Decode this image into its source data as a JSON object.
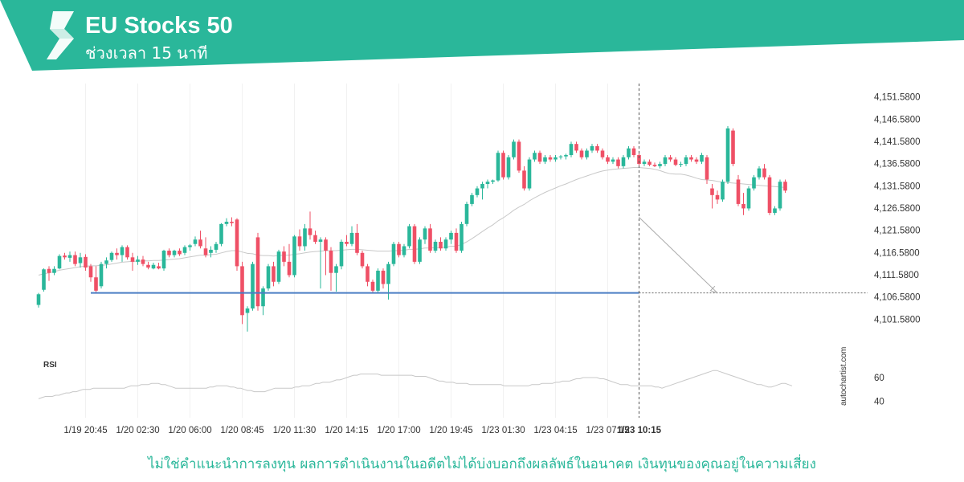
{
  "header": {
    "title": "EU Stocks 50",
    "subtitle": "ช่วงเวลา 15 นาที",
    "logo_icon": "autochartist-logo-icon"
  },
  "colors": {
    "brand": "#2ab79a",
    "bull": "#2ab79a",
    "bear": "#ef5066",
    "support_line": "#4a7dc4",
    "sma_line": "#c8c8c8",
    "rsi_line": "#c8c8c8"
  },
  "chart_data": {
    "type": "candlestick",
    "instrument": "EU Stocks 50",
    "timeframe": "15 นาที",
    "ylim": [
      4098.58,
      4154.58
    ],
    "y_ticks": [
      "4,151.5800",
      "4,146.5800",
      "4,141.5800",
      "4,136.5800",
      "4,131.5800",
      "4,126.5800",
      "4,121.5800",
      "4,116.5800",
      "4,111.5800",
      "4,106.5800",
      "4,101.5800"
    ],
    "y_tick_values": [
      4151.58,
      4146.58,
      4141.58,
      4136.58,
      4131.58,
      4126.58,
      4121.58,
      4116.58,
      4111.58,
      4106.58,
      4101.58
    ],
    "x_ticks": [
      {
        "label": "1/19 20:45",
        "index": 9
      },
      {
        "label": "1/20 02:30",
        "index": 19
      },
      {
        "label": "1/20 06:00",
        "index": 29
      },
      {
        "label": "1/20 08:45",
        "index": 39
      },
      {
        "label": "1/20 11:30",
        "index": 49
      },
      {
        "label": "1/20 14:15",
        "index": 59
      },
      {
        "label": "1/20 17:00",
        "index": 69
      },
      {
        "label": "1/20 19:45",
        "index": 79
      },
      {
        "label": "1/23 01:30",
        "index": 89
      },
      {
        "label": "1/23 04:15",
        "index": 99
      },
      {
        "label": "1/23 07:15",
        "index": 109
      },
      {
        "label": "1/23 10:15",
        "index": 115,
        "bold": true
      }
    ],
    "candles_ohlc": [
      [
        4104.8,
        4107.5,
        4104.2,
        4107.2
      ],
      [
        4108.2,
        4113.0,
        4107.8,
        4112.8
      ],
      [
        4112.9,
        4113.5,
        4110.2,
        4112.0
      ],
      [
        4112.0,
        4113.5,
        4111.5,
        4112.9
      ],
      [
        4113.0,
        4116.2,
        4112.8,
        4115.8
      ],
      [
        4115.9,
        4116.5,
        4115.0,
        4115.5
      ],
      [
        4115.4,
        4116.8,
        4114.5,
        4116.0
      ],
      [
        4116.0,
        4116.8,
        4113.5,
        4114.0
      ],
      [
        4114.2,
        4116.5,
        4113.2,
        4115.5
      ],
      [
        4115.6,
        4116.2,
        4112.5,
        4113.2
      ],
      [
        4113.5,
        4114.0,
        4110.0,
        4111.0
      ],
      [
        4111.0,
        4113.5,
        4107.5,
        4108.0
      ],
      [
        4109.0,
        4114.5,
        4108.5,
        4114.0
      ],
      [
        4114.0,
        4115.5,
        4113.0,
        4114.8
      ],
      [
        4114.9,
        4116.8,
        4114.5,
        4116.5
      ],
      [
        4116.5,
        4117.5,
        4115.0,
        4116.0
      ],
      [
        4116.0,
        4118.2,
        4114.5,
        4117.8
      ],
      [
        4117.8,
        4118.2,
        4115.0,
        4115.5
      ],
      [
        4115.5,
        4116.5,
        4112.5,
        4114.5
      ],
      [
        4114.5,
        4115.8,
        4113.8,
        4115.0
      ],
      [
        4115.0,
        4115.8,
        4113.5,
        4114.0
      ],
      [
        4113.8,
        4114.5,
        4112.8,
        4113.2
      ],
      [
        4113.0,
        4114.3,
        4112.8,
        4113.8
      ],
      [
        4113.5,
        4114.3,
        4112.8,
        4113.0
      ],
      [
        4113.0,
        4117.2,
        4112.5,
        4117.0
      ],
      [
        4117.0,
        4117.5,
        4115.5,
        4116.0
      ],
      [
        4116.0,
        4117.2,
        4115.5,
        4117.0
      ],
      [
        4117.0,
        4117.5,
        4115.8,
        4116.2
      ],
      [
        4116.5,
        4118.2,
        4116.0,
        4117.8
      ],
      [
        4117.8,
        4118.5,
        4117.0,
        4118.2
      ],
      [
        4118.5,
        4120.2,
        4118.0,
        4119.5
      ],
      [
        4119.5,
        4121.5,
        4117.5,
        4118.0
      ],
      [
        4117.5,
        4120.0,
        4115.5,
        4116.0
      ],
      [
        4116.5,
        4118.0,
        4115.5,
        4117.2
      ],
      [
        4117.2,
        4119.0,
        4116.5,
        4118.5
      ],
      [
        4118.5,
        4123.2,
        4118.0,
        4123.0
      ],
      [
        4123.0,
        4124.3,
        4122.5,
        4123.5
      ],
      [
        4123.5,
        4124.5,
        4122.5,
        4123.2
      ],
      [
        4124.0,
        4124.3,
        4112.5,
        4113.5
      ],
      [
        4113.5,
        4114.5,
        4100.5,
        4102.5
      ],
      [
        4103.0,
        4104.5,
        4098.8,
        4104.0
      ],
      [
        4104.0,
        4114.5,
        4103.5,
        4114.0
      ],
      [
        4120.0,
        4121.0,
        4103.5,
        4104.5
      ],
      [
        4104.5,
        4109.0,
        4102.5,
        4108.5
      ],
      [
        4108.5,
        4114.0,
        4108.0,
        4113.5
      ],
      [
        4113.5,
        4114.5,
        4109.0,
        4110.0
      ],
      [
        4110.0,
        4117.2,
        4109.5,
        4116.8
      ],
      [
        4116.8,
        4118.0,
        4113.5,
        4114.5
      ],
      [
        4114.5,
        4118.5,
        4111.0,
        4111.5
      ],
      [
        4111.5,
        4120.5,
        4111.0,
        4120.2
      ],
      [
        4120.2,
        4121.8,
        4117.0,
        4118.0
      ],
      [
        4118.0,
        4123.0,
        4117.0,
        4122.0
      ],
      [
        4122.0,
        4125.8,
        4119.5,
        4120.5
      ],
      [
        4120.5,
        4121.5,
        4118.5,
        4119.0
      ],
      [
        4119.0,
        4120.0,
        4108.5,
        4119.5
      ],
      [
        4119.5,
        4120.0,
        4111.5,
        4117.0
      ],
      [
        4117.0,
        4117.8,
        4108.0,
        4112.0
      ],
      [
        4112.0,
        4114.0,
        4107.8,
        4113.5
      ],
      [
        4113.5,
        4119.5,
        4112.8,
        4119.0
      ],
      [
        4119.0,
        4120.5,
        4118.0,
        4118.5
      ],
      [
        4118.5,
        4122.5,
        4118.0,
        4121.0
      ],
      [
        4121.0,
        4123.0,
        4116.0,
        4116.5
      ],
      [
        4116.5,
        4117.0,
        4113.0,
        4113.5
      ],
      [
        4113.5,
        4114.0,
        4109.0,
        4110.0
      ],
      [
        4110.0,
        4110.5,
        4107.5,
        4108.0
      ],
      [
        4108.0,
        4113.0,
        4107.5,
        4112.5
      ],
      [
        4112.5,
        4113.0,
        4108.5,
        4109.5
      ],
      [
        4109.5,
        4114.5,
        4106.0,
        4114.0
      ],
      [
        4114.0,
        4119.0,
        4113.5,
        4118.5
      ],
      [
        4118.5,
        4119.0,
        4115.5,
        4116.0
      ],
      [
        4116.0,
        4118.5,
        4115.5,
        4118.0
      ],
      [
        4118.0,
        4123.0,
        4117.5,
        4122.5
      ],
      [
        4122.5,
        4123.0,
        4114.0,
        4114.5
      ],
      [
        4114.5,
        4120.0,
        4114.0,
        4119.5
      ],
      [
        4119.5,
        4122.5,
        4118.5,
        4122.0
      ],
      [
        4122.0,
        4123.0,
        4116.5,
        4117.0
      ],
      [
        4117.0,
        4119.5,
        4116.5,
        4119.0
      ],
      [
        4119.0,
        4120.0,
        4117.0,
        4117.5
      ],
      [
        4117.5,
        4120.0,
        4117.0,
        4119.5
      ],
      [
        4119.5,
        4121.5,
        4118.5,
        4121.0
      ],
      [
        4121.0,
        4122.0,
        4116.5,
        4117.0
      ],
      [
        4117.0,
        4123.5,
        4116.5,
        4123.0
      ],
      [
        4123.0,
        4128.0,
        4122.5,
        4127.5
      ],
      [
        4127.5,
        4130.0,
        4127.0,
        4129.5
      ],
      [
        4129.5,
        4131.5,
        4129.0,
        4131.0
      ],
      [
        4131.0,
        4132.5,
        4128.5,
        4132.0
      ],
      [
        4132.0,
        4133.0,
        4131.0,
        4132.5
      ],
      [
        4132.5,
        4133.0,
        4132.0,
        4132.8
      ],
      [
        4132.8,
        4139.5,
        4132.5,
        4139.0
      ],
      [
        4139.0,
        4139.5,
        4133.0,
        4133.5
      ]
    ],
    "candles_ohlc_part2": [
      [
        4133.5,
        4138.5,
        4133.0,
        4138.0
      ],
      [
        4138.0,
        4142.0,
        4137.5,
        4141.5
      ],
      [
        4141.5,
        4142.0,
        4134.5,
        4135.0
      ],
      [
        4135.0,
        4136.0,
        4130.5,
        4131.0
      ],
      [
        4131.0,
        4138.0,
        4130.5,
        4137.5
      ],
      [
        4137.5,
        4139.5,
        4137.0,
        4139.0
      ],
      [
        4139.0,
        4139.5,
        4136.5,
        4137.0
      ],
      [
        4137.0,
        4138.5,
        4136.5,
        4138.0
      ],
      [
        4138.0,
        4138.5,
        4137.0,
        4137.5
      ],
      [
        4137.5,
        4138.5,
        4137.0,
        4138.0
      ],
      [
        4138.0,
        4138.5,
        4137.5,
        4138.2
      ],
      [
        4138.2,
        4138.8,
        4137.5,
        4138.5
      ],
      [
        4138.5,
        4141.5,
        4138.0,
        4141.0
      ],
      [
        4141.0,
        4141.5,
        4139.0,
        4139.5
      ],
      [
        4139.5,
        4140.0,
        4137.5,
        4138.0
      ],
      [
        4138.0,
        4140.0,
        4137.5,
        4139.5
      ],
      [
        4139.5,
        4141.0,
        4139.0,
        4140.5
      ],
      [
        4140.5,
        4141.0,
        4139.0,
        4139.5
      ],
      [
        4139.5,
        4140.0,
        4137.5,
        4138.0
      ],
      [
        4138.0,
        4138.5,
        4136.5,
        4137.0
      ],
      [
        4137.0,
        4138.0,
        4136.5,
        4137.5
      ],
      [
        4137.5,
        4138.0,
        4135.5,
        4136.0
      ],
      [
        4136.0,
        4138.5,
        4135.5,
        4138.0
      ],
      [
        4138.0,
        4140.5,
        4137.5,
        4140.0
      ],
      [
        4140.0,
        4140.5,
        4138.0,
        4138.5
      ],
      [
        4138.5,
        4139.0,
        4136.0,
        4136.5
      ],
      [
        4136.5,
        4137.5,
        4136.0,
        4137.0
      ],
      [
        4137.0,
        4137.5,
        4136.0,
        4136.3
      ],
      [
        4136.3,
        4136.8,
        4135.8,
        4136.0
      ],
      [
        4136.0,
        4137.0,
        4135.5,
        4136.5
      ],
      [
        4136.5,
        4138.5,
        4136.0,
        4138.0
      ],
      [
        4138.0,
        4138.5,
        4137.0,
        4137.5
      ],
      [
        4137.5,
        4138.0,
        4136.0,
        4136.3
      ],
      [
        4136.3,
        4137.0,
        4135.8,
        4136.5
      ],
      [
        4136.5,
        4138.5,
        4136.0,
        4138.0
      ],
      [
        4138.0,
        4138.5,
        4137.0,
        4137.5
      ],
      [
        4137.5,
        4138.0,
        4136.5,
        4137.0
      ],
      [
        4137.0,
        4139.0,
        4136.5,
        4138.5
      ],
      [
        4138.0,
        4138.5,
        4132.0,
        4133.0
      ],
      [
        4131.0,
        4132.0,
        4126.5,
        4129.5
      ]
    ],
    "candles_ohlc_part3": [
      [
        4129.5,
        4130.5,
        4127.5,
        4128.5
      ],
      [
        4128.5,
        4133.0,
        4128.0,
        4132.5
      ],
      [
        4132.5,
        4145.0,
        4132.0,
        4144.5
      ],
      [
        4144.0,
        4144.5,
        4136.0,
        4136.5
      ],
      [
        4133.0,
        4134.0,
        4127.0,
        4127.5
      ],
      [
        4127.5,
        4130.0,
        4125.0,
        4126.5
      ],
      [
        4126.5,
        4131.5,
        4126.0,
        4131.0
      ],
      [
        4131.0,
        4134.0,
        4130.5,
        4133.5
      ],
      [
        4133.5,
        4136.0,
        4133.0,
        4135.5
      ],
      [
        4135.5,
        4136.5,
        4133.0,
        4133.5
      ],
      [
        4133.5,
        4134.0,
        4125.0,
        4125.5
      ],
      [
        4125.5,
        4127.0,
        4125.0,
        4126.5
      ],
      [
        4126.5,
        4133.0,
        4126.0,
        4132.5
      ],
      [
        4132.5,
        4133.0,
        4130.0,
        4130.5
      ]
    ],
    "support_level": 4107.5,
    "support_from_index": 10,
    "support_to_index": 115,
    "forecast_arrow": {
      "from_index": 115,
      "from_value": 4124.5,
      "to_index": 130,
      "to_value": 4107.5
    },
    "cursor_index": 115,
    "sma_values": [
      4111.5,
      4111.8,
      4112.0,
      4112.3,
      4112.6,
      4112.8,
      4113.0,
      4113.2,
      4113.4,
      4113.5,
      4113.6,
      4113.6,
      4113.7,
      4113.8,
      4114.0,
      4114.2,
      4114.4,
      4114.5,
      4114.6,
      4114.6,
      4114.7,
      4114.7,
      4114.8,
      4114.8,
      4114.9,
      4115.0,
      4115.1,
      4115.2,
      4115.4,
      4115.6,
      4115.8,
      4116.0,
      4116.0,
      4116.1,
      4116.2,
      4116.5,
      4116.8,
      4117.0,
      4117.0,
      4116.7,
      4116.4,
      4116.3,
      4116.0,
      4115.9,
      4115.9,
      4115.8,
      4115.9,
      4116.0,
      4116.0,
      4116.2,
      4116.3,
      4116.5,
      4116.7,
      4116.8,
      4116.9,
      4117.0,
      4117.0,
      4117.0,
      4117.1,
      4117.2,
      4117.3,
      4117.3,
      4117.2,
      4117.1,
      4117.0,
      4116.9,
      4116.9,
      4116.9,
      4117.0,
      4117.0,
      4117.1,
      4117.3,
      4117.3,
      4117.4,
      4117.6,
      4117.6,
      4117.7,
      4117.7,
      4117.8,
      4118.0,
      4118.0,
      4118.4,
      4119.0,
      4119.7,
      4120.5,
      4121.3,
      4122.1,
      4122.8,
      4123.7,
      4124.4,
      4125.2,
      4126.1,
      4126.8,
      4127.4,
      4128.2,
      4128.9,
      4129.5,
      4130.1,
      4130.6,
      4131.1,
      4131.6,
      4132.0,
      4132.5,
      4133.0,
      4133.4,
      4133.8,
      4134.2,
      4134.6,
      4134.9,
      4135.1,
      4135.3,
      4135.4,
      4135.5,
      4135.6,
      4135.7,
      4135.7,
      4135.6,
      4135.5,
      4135.3,
      4135.0,
      4134.6,
      4134.3,
      4134.2,
      4134.2,
      4134.0,
      4133.7,
      4133.3,
      4133.0,
      4132.9,
      4132.8,
      4132.6,
      4132.4,
      4132.3,
      4132.2,
      4132.1,
      4132.0,
      4131.9,
      4131.8,
      4131.7,
      4131.6,
      4131.5,
      4131.4,
      4131.3,
      4131.2
    ],
    "rsi": {
      "label": "RSI",
      "ylim": [
        30,
        75
      ],
      "y_ticks": [
        {
          "label": "60",
          "value": 60
        },
        {
          "label": "40",
          "value": 40
        }
      ],
      "values": [
        42,
        43,
        44,
        44,
        44,
        45,
        45,
        46,
        47,
        47,
        48,
        48,
        49,
        50,
        50,
        50,
        51,
        51,
        51,
        51,
        51,
        51,
        51,
        51,
        51,
        51,
        52,
        53,
        53,
        53,
        54,
        54,
        54,
        55,
        55,
        55,
        54,
        54,
        53,
        52,
        51,
        51,
        51,
        51,
        51,
        51,
        51,
        51,
        51,
        51,
        52,
        52,
        53,
        53,
        53,
        53,
        52,
        52,
        51,
        51,
        50,
        49,
        49,
        48,
        48,
        48,
        48,
        49,
        50,
        51,
        51,
        51,
        51,
        51,
        51,
        52,
        52,
        53,
        53,
        53,
        54,
        55,
        55,
        56,
        56,
        56,
        57,
        58,
        58,
        59,
        60,
        61,
        62,
        62,
        63,
        63,
        63,
        63,
        63,
        63,
        62,
        62,
        62,
        62,
        62,
        62,
        62,
        62,
        62,
        62,
        61,
        61,
        61,
        61,
        60,
        59,
        58,
        57,
        57,
        56,
        56,
        56,
        55,
        55,
        55,
        55,
        54,
        54,
        54,
        54,
        54,
        54,
        54,
        54,
        54,
        54,
        53,
        53,
        53,
        53,
        53,
        53,
        53,
        53,
        54,
        54,
        54,
        55,
        55,
        55,
        55,
        56,
        56,
        57,
        57,
        57,
        58,
        59,
        59,
        60,
        60,
        60,
        60,
        60,
        59,
        59,
        58,
        57,
        56,
        55,
        54,
        54,
        54,
        53,
        53,
        53,
        53,
        53,
        53,
        53,
        52,
        52,
        51,
        52,
        53,
        54,
        55,
        56,
        57,
        58,
        59,
        60,
        61,
        62,
        63,
        64,
        65,
        66,
        66,
        65,
        64,
        63,
        62,
        61,
        60,
        59,
        58,
        57,
        56,
        55,
        54,
        54,
        53,
        52,
        52,
        53,
        54,
        55,
        55,
        54,
        53
      ]
    }
  },
  "disclaimer": "ไม่ใช่คำแนะนำการลงทุน ผลการดำเนินงานในอดีตไม่ได้บ่งบอกถึงผลลัพธ์ในอนาคต เงินทุนของคุณอยู่ในความเสี่ยง",
  "watermark": "autochartist.com"
}
